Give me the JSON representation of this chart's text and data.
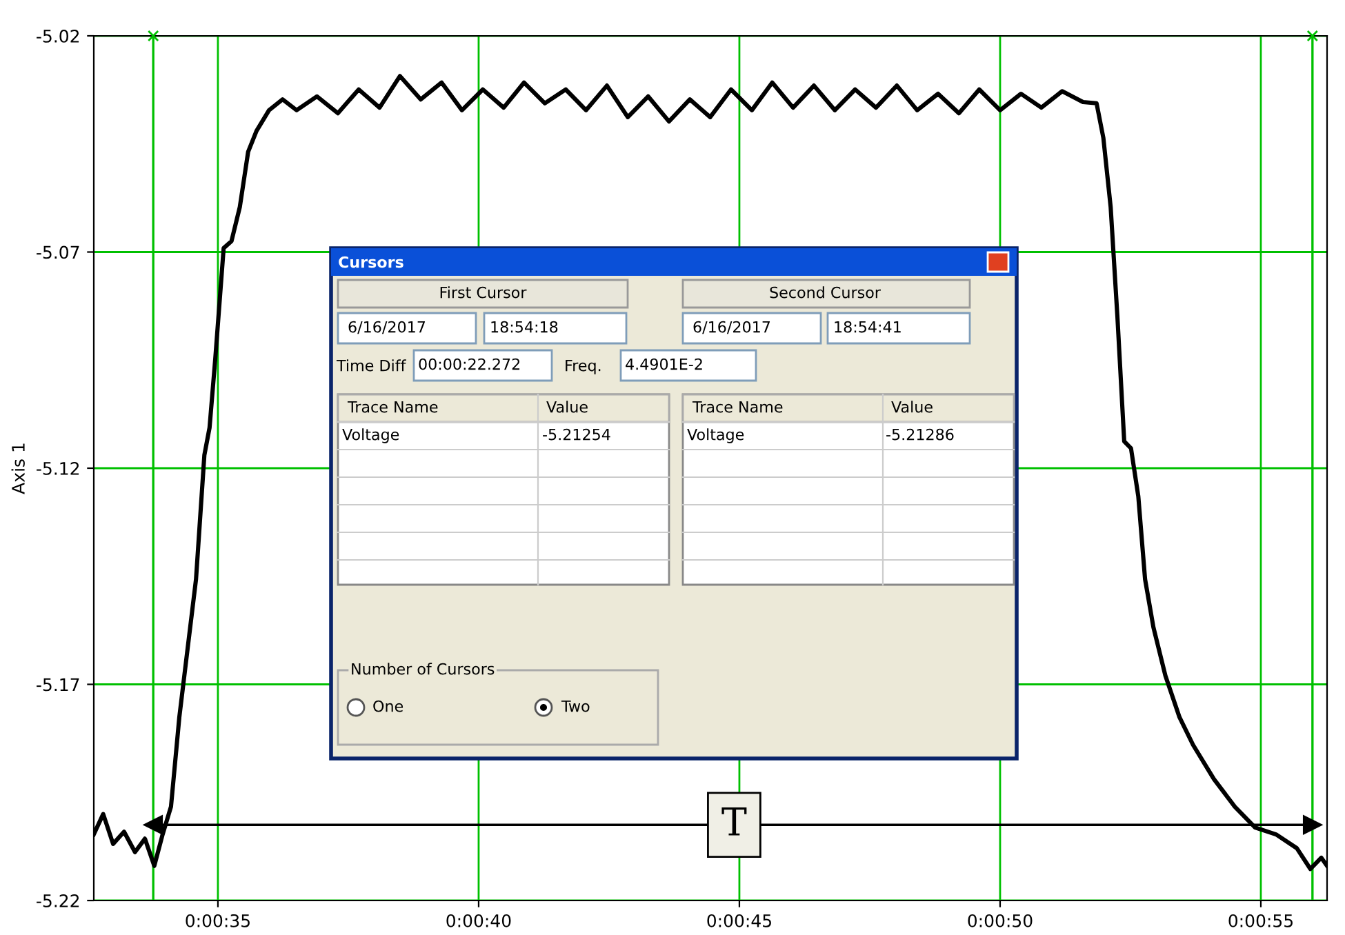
{
  "chart_data": {
    "type": "line",
    "ylabel": "Axis 1",
    "x": [
      32.62,
      32.8,
      32.99,
      33.2,
      33.41,
      33.6,
      33.78,
      33.94,
      34.1,
      34.26,
      34.42,
      34.58,
      34.74,
      34.84,
      34.95,
      35.11,
      35.26,
      35.42,
      35.58,
      35.74,
      35.98,
      36.24,
      36.51,
      36.9,
      37.3,
      37.7,
      38.1,
      38.49,
      38.89,
      39.29,
      39.68,
      40.08,
      40.48,
      40.87,
      41.27,
      41.67,
      42.06,
      42.46,
      42.86,
      43.25,
      43.65,
      44.05,
      44.44,
      44.84,
      45.24,
      45.63,
      46.03,
      46.43,
      46.83,
      47.22,
      47.62,
      48.02,
      48.41,
      48.81,
      49.21,
      49.6,
      50.0,
      50.4,
      50.79,
      51.19,
      51.59,
      51.85,
      51.98,
      52.12,
      52.25,
      52.38,
      52.51,
      52.65,
      52.78,
      52.94,
      53.17,
      53.44,
      53.7,
      54.1,
      54.5,
      54.89,
      55.29,
      55.69,
      55.95,
      56.16,
      56.27
    ],
    "series": [
      {
        "color": "#000000",
        "values": [
          -5.2047,
          -5.2,
          -5.2069,
          -5.2041,
          -5.2088,
          -5.2057,
          -5.212,
          -5.2047,
          -5.1983,
          -5.1776,
          -5.1616,
          -5.1457,
          -5.117,
          -5.1106,
          -5.0946,
          -5.0691,
          -5.0675,
          -5.0596,
          -5.0468,
          -5.042,
          -5.0372,
          -5.0347,
          -5.0372,
          -5.034,
          -5.0379,
          -5.0324,
          -5.0366,
          -5.0293,
          -5.0347,
          -5.0308,
          -5.0372,
          -5.0324,
          -5.0366,
          -5.0308,
          -5.0356,
          -5.0324,
          -5.0372,
          -5.0315,
          -5.0388,
          -5.034,
          -5.0398,
          -5.0347,
          -5.0388,
          -5.0324,
          -5.0372,
          -5.0308,
          -5.0366,
          -5.0315,
          -5.0372,
          -5.0324,
          -5.0366,
          -5.0315,
          -5.0372,
          -5.0334,
          -5.0379,
          -5.0324,
          -5.0372,
          -5.0334,
          -5.0366,
          -5.0328,
          -5.0353,
          -5.0356,
          -5.0436,
          -5.0596,
          -5.0851,
          -5.1138,
          -5.1154,
          -5.1265,
          -5.1457,
          -5.1568,
          -5.168,
          -5.1776,
          -5.184,
          -5.1919,
          -5.1983,
          -5.2031,
          -5.2047,
          -5.2079,
          -5.2127,
          -5.2101,
          -5.212
        ]
      },
      {
        "type": "line",
        "color": "#000000",
        "marker": "triangle",
        "x": [
          33.76,
          55.99
        ],
        "values": [
          -5.2025,
          -5.2025
        ]
      }
    ],
    "xlim": [
      32.62,
      56.27
    ],
    "ylim": [
      -5.22,
      -5.02
    ],
    "xticks": [
      {
        "value": 35,
        "label": "0:00:35"
      },
      {
        "value": 40,
        "label": "0:00:40"
      },
      {
        "value": 45,
        "label": "0:00:45"
      },
      {
        "value": 50,
        "label": "0:00:50"
      },
      {
        "value": 55,
        "label": "0:00:55"
      }
    ],
    "yticks": [
      {
        "value": -5.02,
        "label": "-5.02"
      },
      {
        "value": -5.07,
        "label": "-5.07"
      },
      {
        "value": -5.12,
        "label": "-5.12"
      },
      {
        "value": -5.17,
        "label": "-5.17"
      },
      {
        "value": -5.22,
        "label": "-5.22"
      }
    ],
    "grid": true,
    "legend": false,
    "line_style": "solid",
    "ref_lines": [
      {
        "axis": "x",
        "value": 33.76,
        "color": "#00c000"
      },
      {
        "axis": "x",
        "value": 55.99,
        "color": "#00c000"
      }
    ],
    "annotations": [
      {
        "text": "T",
        "x": 44.9,
        "y": -5.2025
      },
      "Cursors",
      "First Cursor",
      "Second Cursor",
      "6/16/2017",
      "18:54:18",
      "6/16/2017",
      "18:54:41",
      "Time Diff",
      "00:00:22.272",
      "Freq.",
      "4.4901E-2",
      "Trace Name",
      "Value",
      "Voltage",
      "-5.21254",
      "Trace Name",
      "Value",
      "Voltage",
      "-5.21286",
      "Number of Cursors",
      "One",
      "Two"
    ]
  }
}
